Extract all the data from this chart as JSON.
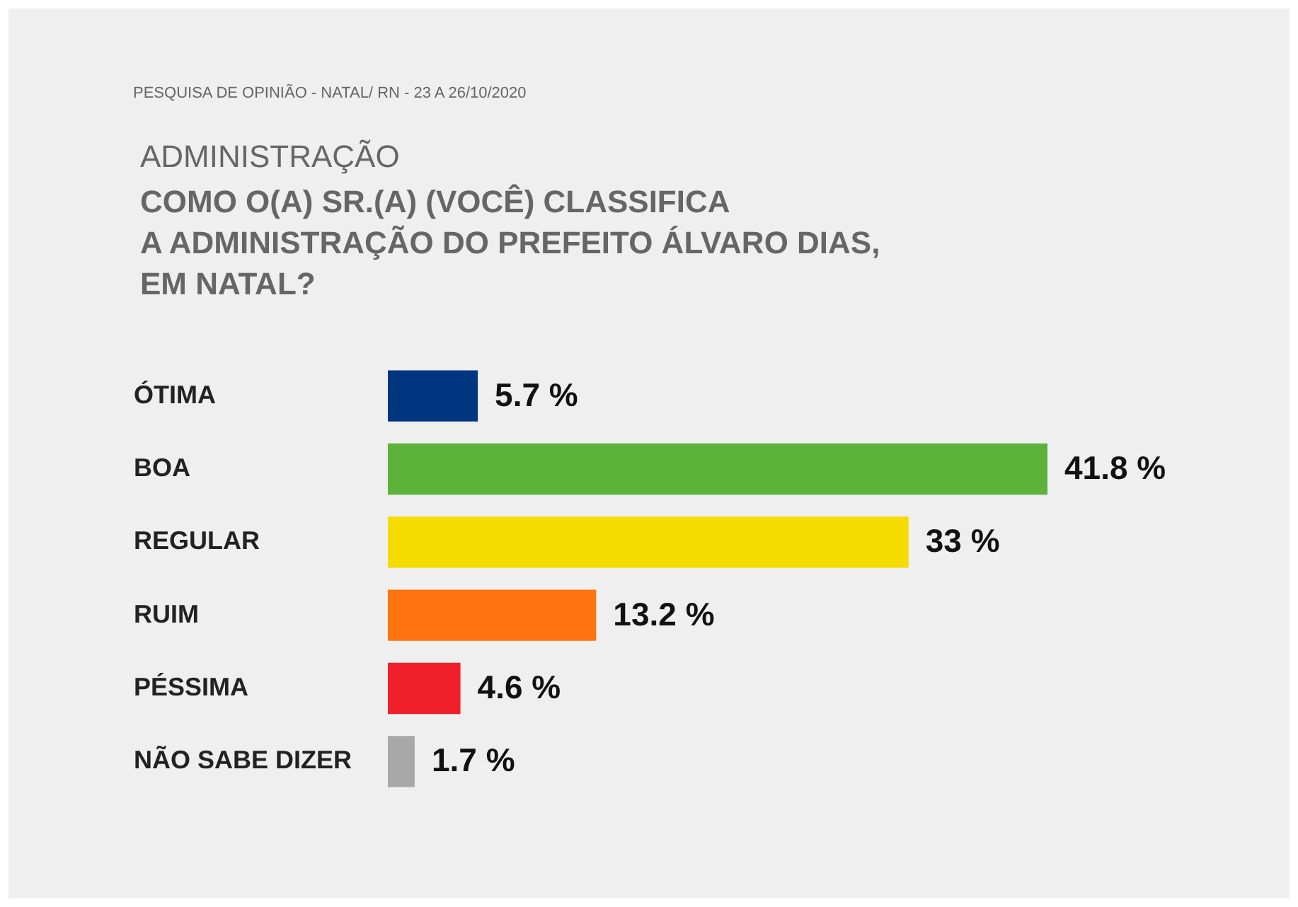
{
  "chart_data": {
    "type": "bar",
    "orientation": "horizontal",
    "annotations": [
      "PESQUISA DE OPINIÃO - NATAL/ RN - 23 A 26/10/2020"
    ],
    "subtitle": "ADMINISTRAÇÃO",
    "title": "COMO O(A) SR.(A) (VOCÊ) CLASSIFICA\nA ADMINISTRAÇÃO DO PREFEITO ÁLVARO DIAS,\nEM NATAL?",
    "categories": [
      "ÓTIMA",
      "BOA",
      "REGULAR",
      "RUIM",
      "PÉSSIMA",
      "NÃO SABE DIZER"
    ],
    "values": [
      5.7,
      41.8,
      33,
      13.2,
      4.6,
      1.7
    ],
    "value_labels": [
      "5.7 %",
      "41.8 %",
      "33 %",
      "13.2 %",
      "4.6 %",
      "1.7 %"
    ],
    "colors": [
      "#003580",
      "#5db33a",
      "#f5dc00",
      "#ff7210",
      "#f0202a",
      "#a8a8a8"
    ]
  }
}
